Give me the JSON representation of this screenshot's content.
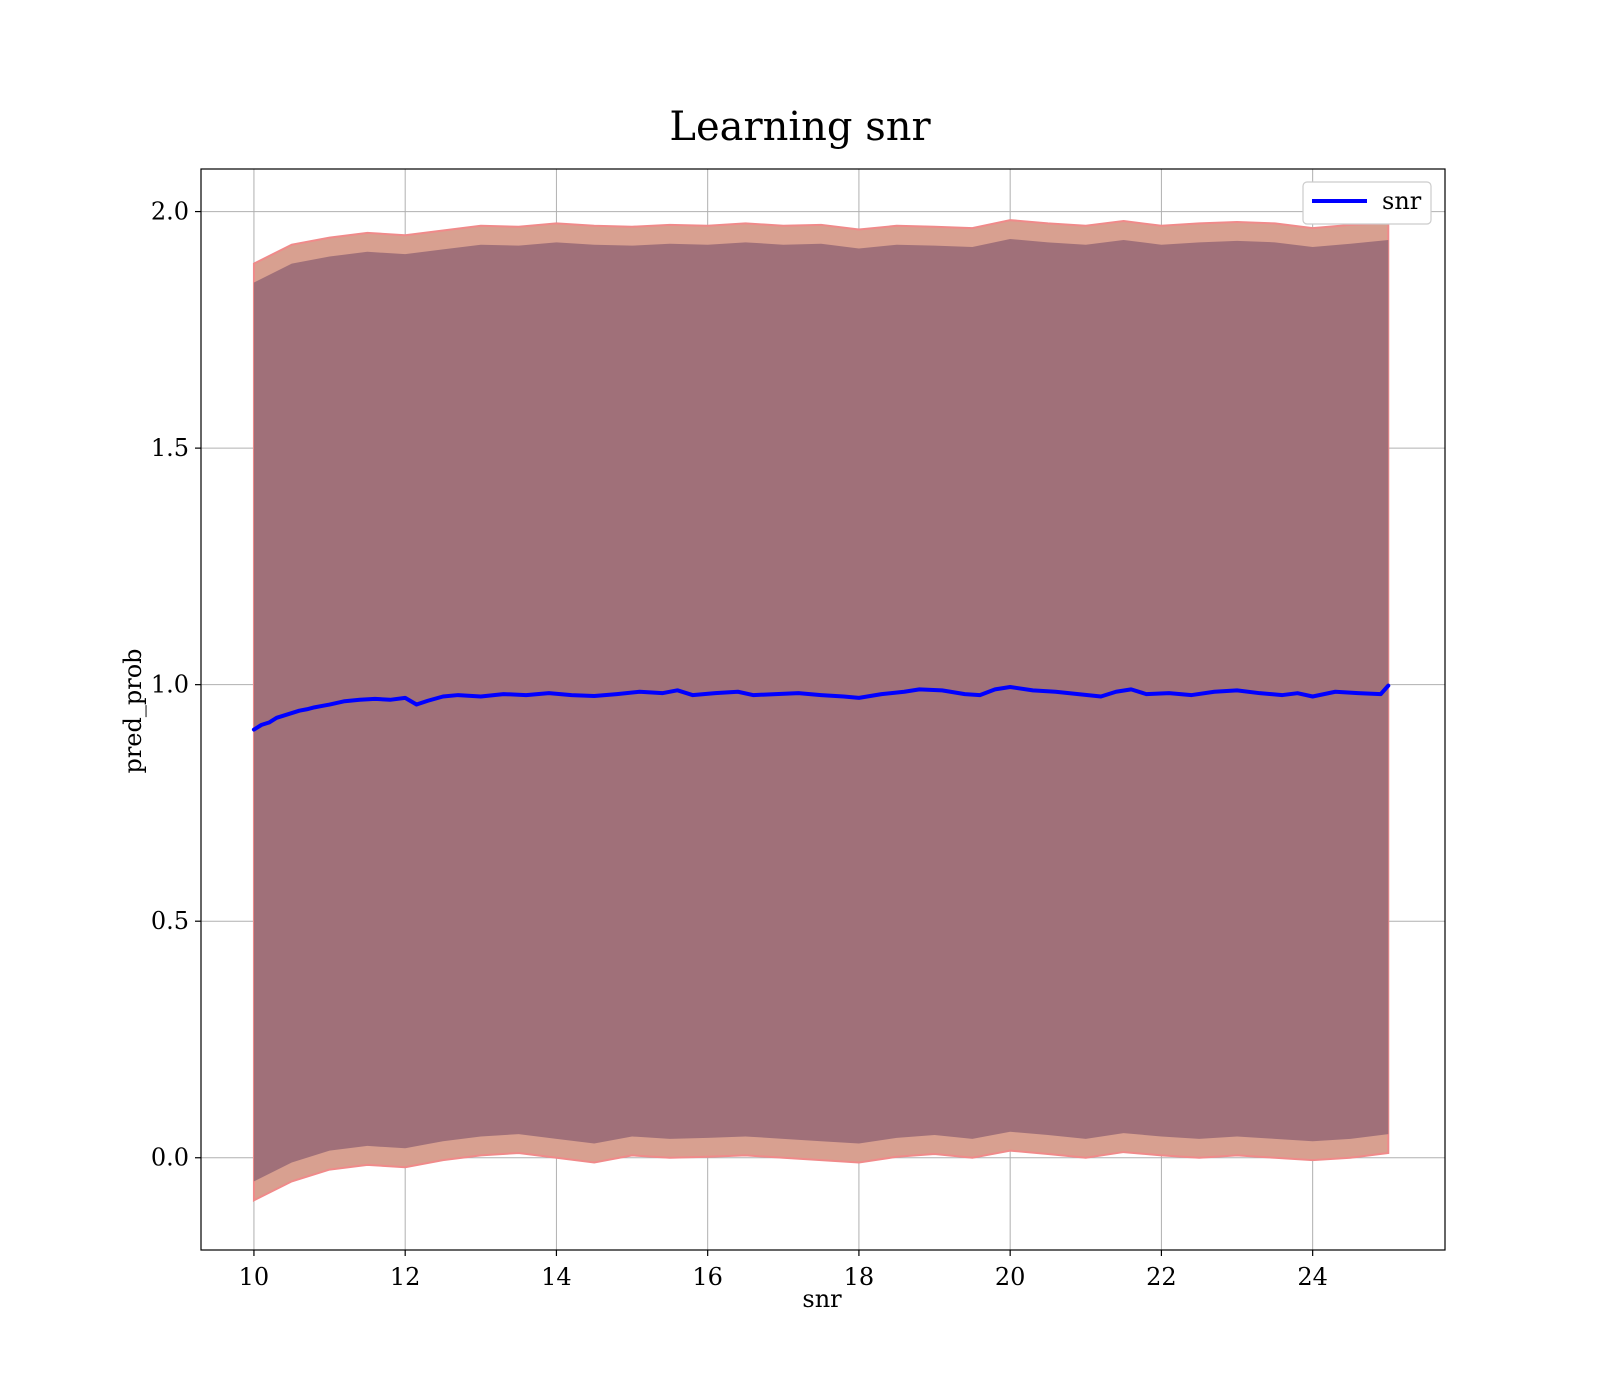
{
  "chart_data": {
    "type": "line",
    "title": "Learning snr",
    "xlabel": "snr",
    "ylabel": "pred_prob",
    "xlim": [
      9.3,
      25.75
    ],
    "ylim": [
      -0.195,
      2.09
    ],
    "xticks": [
      10,
      12,
      14,
      16,
      18,
      20,
      22,
      24
    ],
    "xtick_labels": [
      "10",
      "12",
      "14",
      "16",
      "18",
      "20",
      "22",
      "24"
    ],
    "yticks": [
      0.0,
      0.5,
      1.0,
      1.5,
      2.0
    ],
    "ytick_labels": [
      "0.0",
      "0.5",
      "1.0",
      "1.5",
      "2.0"
    ],
    "grid": true,
    "legend_position": "top-right",
    "series": [
      {
        "name": "snr",
        "color": "#0000ff",
        "x": [
          10.0,
          10.1,
          10.2,
          10.3,
          10.4,
          10.5,
          10.6,
          10.7,
          10.8,
          10.9,
          11.0,
          11.2,
          11.4,
          11.6,
          11.8,
          12.0,
          12.15,
          12.3,
          12.5,
          12.7,
          13.0,
          13.3,
          13.6,
          13.9,
          14.2,
          14.5,
          14.8,
          15.1,
          15.4,
          15.6,
          15.8,
          16.1,
          16.4,
          16.6,
          16.9,
          17.2,
          17.5,
          17.8,
          18.0,
          18.3,
          18.6,
          18.8,
          19.1,
          19.4,
          19.6,
          19.8,
          20.0,
          20.3,
          20.6,
          20.9,
          21.2,
          21.4,
          21.6,
          21.8,
          22.1,
          22.4,
          22.7,
          23.0,
          23.3,
          23.6,
          23.8,
          24.0,
          24.3,
          24.6,
          24.9,
          25.0
        ],
        "y": [
          0.905,
          0.915,
          0.92,
          0.93,
          0.935,
          0.94,
          0.945,
          0.948,
          0.952,
          0.955,
          0.958,
          0.965,
          0.968,
          0.97,
          0.968,
          0.972,
          0.958,
          0.966,
          0.975,
          0.978,
          0.975,
          0.98,
          0.978,
          0.982,
          0.978,
          0.976,
          0.98,
          0.985,
          0.982,
          0.988,
          0.978,
          0.982,
          0.985,
          0.978,
          0.98,
          0.982,
          0.978,
          0.975,
          0.972,
          0.98,
          0.985,
          0.99,
          0.988,
          0.98,
          0.978,
          0.99,
          0.995,
          0.988,
          0.985,
          0.98,
          0.975,
          0.985,
          0.99,
          0.98,
          0.982,
          0.978,
          0.985,
          0.988,
          0.982,
          0.978,
          0.982,
          0.975,
          0.985,
          0.982,
          0.98,
          0.998
        ]
      }
    ],
    "bands": [
      {
        "name": "outer",
        "color": "#d8a090",
        "edge_color": "#f08a8a",
        "x": [
          10.0,
          10.5,
          11.0,
          11.5,
          12.0,
          12.5,
          13.0,
          13.5,
          14.0,
          14.5,
          15.0,
          15.5,
          16.0,
          16.5,
          17.0,
          17.5,
          18.0,
          18.5,
          19.0,
          19.5,
          20.0,
          20.5,
          21.0,
          21.5,
          22.0,
          22.5,
          23.0,
          23.5,
          24.0,
          24.5,
          25.0
        ],
        "upper": [
          1.89,
          1.93,
          1.945,
          1.955,
          1.95,
          1.96,
          1.97,
          1.968,
          1.975,
          1.97,
          1.968,
          1.972,
          1.97,
          1.975,
          1.97,
          1.972,
          1.962,
          1.97,
          1.968,
          1.965,
          1.982,
          1.975,
          1.97,
          1.98,
          1.97,
          1.975,
          1.978,
          1.975,
          1.965,
          1.972,
          1.975
        ],
        "lower": [
          -0.09,
          -0.05,
          -0.025,
          -0.015,
          -0.02,
          -0.005,
          0.005,
          0.01,
          0.0,
          -0.01,
          0.005,
          0.0,
          0.002,
          0.005,
          0.0,
          -0.005,
          -0.01,
          0.002,
          0.008,
          0.0,
          0.015,
          0.008,
          0.0,
          0.012,
          0.005,
          0.0,
          0.005,
          0.0,
          -0.005,
          0.0,
          0.01
        ]
      },
      {
        "name": "inner",
        "color": "#a07079",
        "x": [
          10.0,
          10.5,
          11.0,
          11.5,
          12.0,
          12.5,
          13.0,
          13.5,
          14.0,
          14.5,
          15.0,
          15.5,
          16.0,
          16.5,
          17.0,
          17.5,
          18.0,
          18.5,
          19.0,
          19.5,
          20.0,
          20.5,
          21.0,
          21.5,
          22.0,
          22.5,
          23.0,
          23.5,
          24.0,
          24.5,
          25.0
        ],
        "upper": [
          1.85,
          1.89,
          1.905,
          1.915,
          1.91,
          1.92,
          1.93,
          1.928,
          1.935,
          1.93,
          1.928,
          1.932,
          1.93,
          1.935,
          1.93,
          1.932,
          1.922,
          1.93,
          1.928,
          1.925,
          1.942,
          1.935,
          1.93,
          1.94,
          1.93,
          1.935,
          1.938,
          1.935,
          1.925,
          1.932,
          1.94
        ],
        "lower": [
          -0.05,
          -0.01,
          0.015,
          0.025,
          0.02,
          0.035,
          0.045,
          0.05,
          0.04,
          0.03,
          0.045,
          0.04,
          0.042,
          0.045,
          0.04,
          0.035,
          0.03,
          0.042,
          0.048,
          0.04,
          0.055,
          0.048,
          0.04,
          0.052,
          0.045,
          0.04,
          0.045,
          0.04,
          0.035,
          0.04,
          0.05
        ]
      }
    ]
  }
}
